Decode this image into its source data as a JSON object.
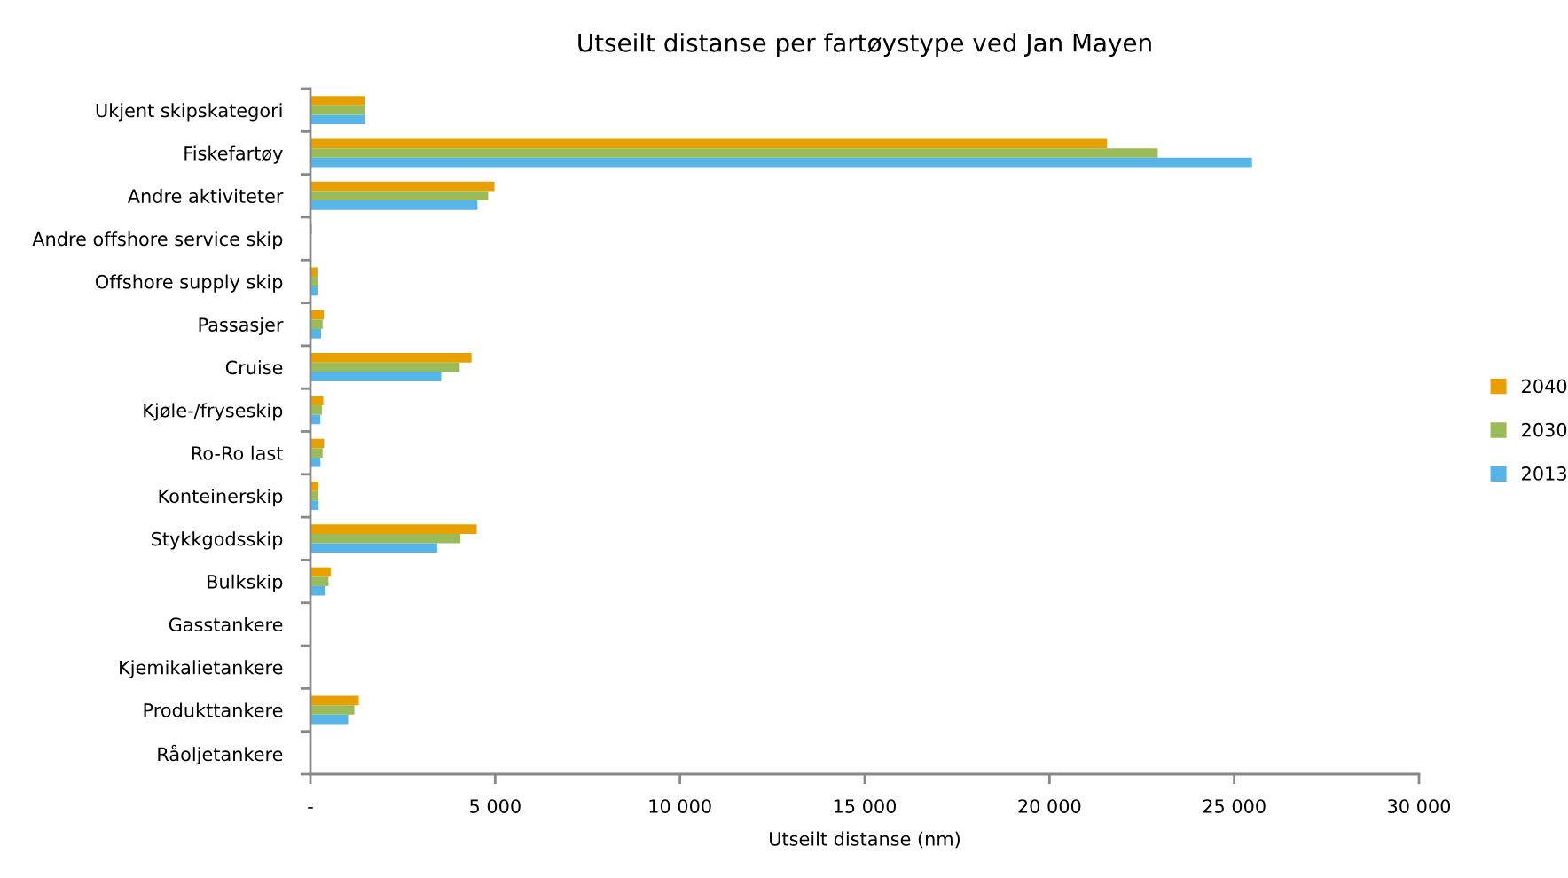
{
  "chart_data": {
    "type": "bar",
    "orientation": "horizontal",
    "title": "Utseilt distanse per fartøystype ved Jan Mayen",
    "xlabel": "Utseilt distanse (nm)",
    "categories": [
      "Ukjent skipskategori",
      "Fiskefartøy",
      "Andre aktiviteter",
      "Andre offshore service skip",
      "Offshore supply skip",
      "Passasjer",
      "Cruise",
      "Kjøle-/fryseskip",
      "Ro-Ro last",
      "Konteinerskip",
      "Stykkgodsskip",
      "Bulkskip",
      "Gasstankere",
      "Kjemikalietankere",
      "Produkttankere",
      "Råoljetankere"
    ],
    "series": [
      {
        "name": "2040",
        "color": "#e8a000",
        "values": [
          1470,
          21560,
          4980,
          40,
          190,
          360,
          4360,
          350,
          370,
          210,
          4500,
          550,
          0,
          0,
          1310,
          0
        ]
      },
      {
        "name": "2030",
        "color": "#9bbb59",
        "values": [
          1470,
          22930,
          4810,
          null,
          190,
          330,
          4040,
          310,
          330,
          210,
          4060,
          490,
          0,
          0,
          1190,
          0
        ]
      },
      {
        "name": "2013",
        "color": "#56b4e6",
        "values": [
          1470,
          25480,
          4520,
          null,
          190,
          290,
          3540,
          270,
          270,
          220,
          3430,
          410,
          0,
          0,
          1020,
          0
        ]
      }
    ],
    "xlim": [
      0,
      30000
    ],
    "xticks": [
      {
        "value": 0,
        "label": "-"
      },
      {
        "value": 5000,
        "label": "5 000"
      },
      {
        "value": 10000,
        "label": "10 000"
      },
      {
        "value": 15000,
        "label": "15 000"
      },
      {
        "value": 20000,
        "label": "20 000"
      },
      {
        "value": 25000,
        "label": "25 000"
      },
      {
        "value": 30000,
        "label": "30 000"
      }
    ],
    "grid": false,
    "legend": "right"
  }
}
